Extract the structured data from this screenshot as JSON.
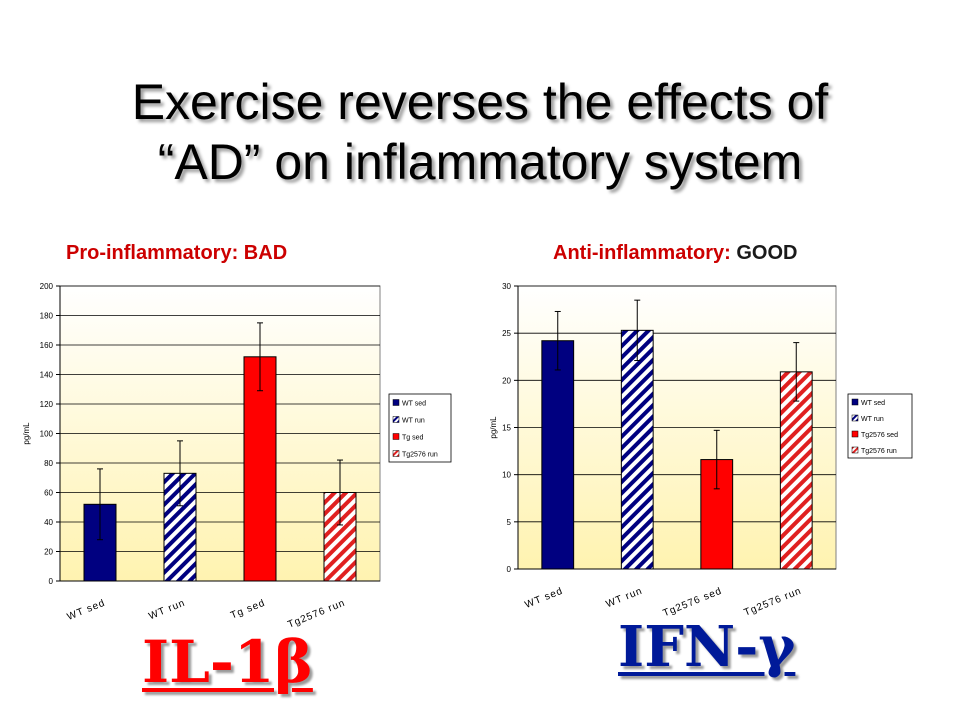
{
  "slide": {
    "title_line1": "Exercise reverses the effects of",
    "title_line2": "“AD” on inflammatory system",
    "left_subtitle": "Pro-inflammatory: BAD",
    "right_subtitle_prefix": "Anti-inflammatory: ",
    "right_subtitle_emphasis": "GOOD",
    "left_label": "IL-1β",
    "right_label": "IFN-γ"
  },
  "colors": {
    "navy": "#000080",
    "red": "#ff0000",
    "hatch_red": "#e02020",
    "plot_bg_top": "#ffffff",
    "plot_bg_bottom": "#fff3b0"
  },
  "chart_data": [
    {
      "type": "bar",
      "ylabel": "pg/mL",
      "ylim": [
        0,
        200
      ],
      "yticks": [
        0,
        20,
        40,
        60,
        80,
        100,
        120,
        140,
        160,
        180,
        200
      ],
      "grid": true,
      "legend_position": "right",
      "categories": [
        "WT sed",
        "WT run",
        "Tg sed",
        "Tg2576 run"
      ],
      "values": [
        52,
        73,
        152,
        60
      ],
      "errors": [
        24,
        22,
        23,
        22
      ],
      "legend": [
        "WT sed",
        "WT run",
        "Tg sed",
        "Tg2576 run"
      ],
      "styles": [
        "solid-navy",
        "hatch-navy",
        "solid-red",
        "hatch-red"
      ]
    },
    {
      "type": "bar",
      "ylabel": "pg/mL",
      "ylim": [
        0,
        30
      ],
      "yticks": [
        0,
        5,
        10,
        15,
        20,
        25,
        30
      ],
      "grid": true,
      "legend_position": "right",
      "categories": [
        "WT sed",
        "WT run",
        "Tg2576 sed",
        "Tg2576 run"
      ],
      "values": [
        24.2,
        25.3,
        11.6,
        20.9
      ],
      "errors": [
        3.1,
        3.2,
        3.1,
        3.1
      ],
      "legend": [
        "WT sed",
        "WT run",
        "Tg2576 sed",
        "Tg2576 run"
      ],
      "styles": [
        "solid-navy",
        "hatch-navy",
        "solid-red",
        "hatch-red"
      ]
    }
  ]
}
